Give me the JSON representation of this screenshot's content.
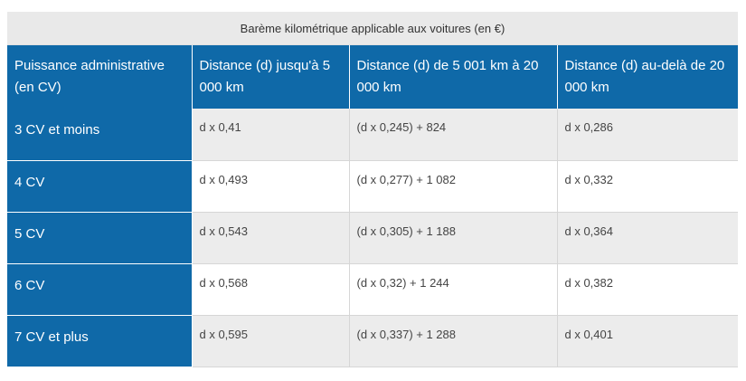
{
  "table": {
    "caption": "Barème kilométrique applicable aux voitures (en €)",
    "headers": [
      "Puissance administrative (en CV)",
      "Distance (d) jusqu'à 5 000 km",
      "Distance (d) de 5 001 km à 20 000 km",
      "Distance (d) au-delà de 20 000 km"
    ],
    "rows": [
      [
        "3 CV et moins",
        "d x 0,41",
        "(d x 0,245) + 824",
        "d x 0,286"
      ],
      [
        "4 CV",
        "d x 0,493",
        "(d x 0,277) + 1 082",
        "d x 0,332"
      ],
      [
        "5 CV",
        "d x 0,543",
        "(d x 0,305) + 1 188",
        "d x 0,364"
      ],
      [
        "6 CV",
        "d x 0,568",
        "(d x 0,32) + 1 244",
        "d x 0,382"
      ],
      [
        "7 CV et plus",
        "d x 0,595",
        "(d x 0,337) + 1 288",
        "d x 0,401"
      ]
    ]
  },
  "colors": {
    "header_blue": "#0f69a8",
    "caption_gray": "#e9e9e9",
    "stripe_gray": "#ececec"
  }
}
